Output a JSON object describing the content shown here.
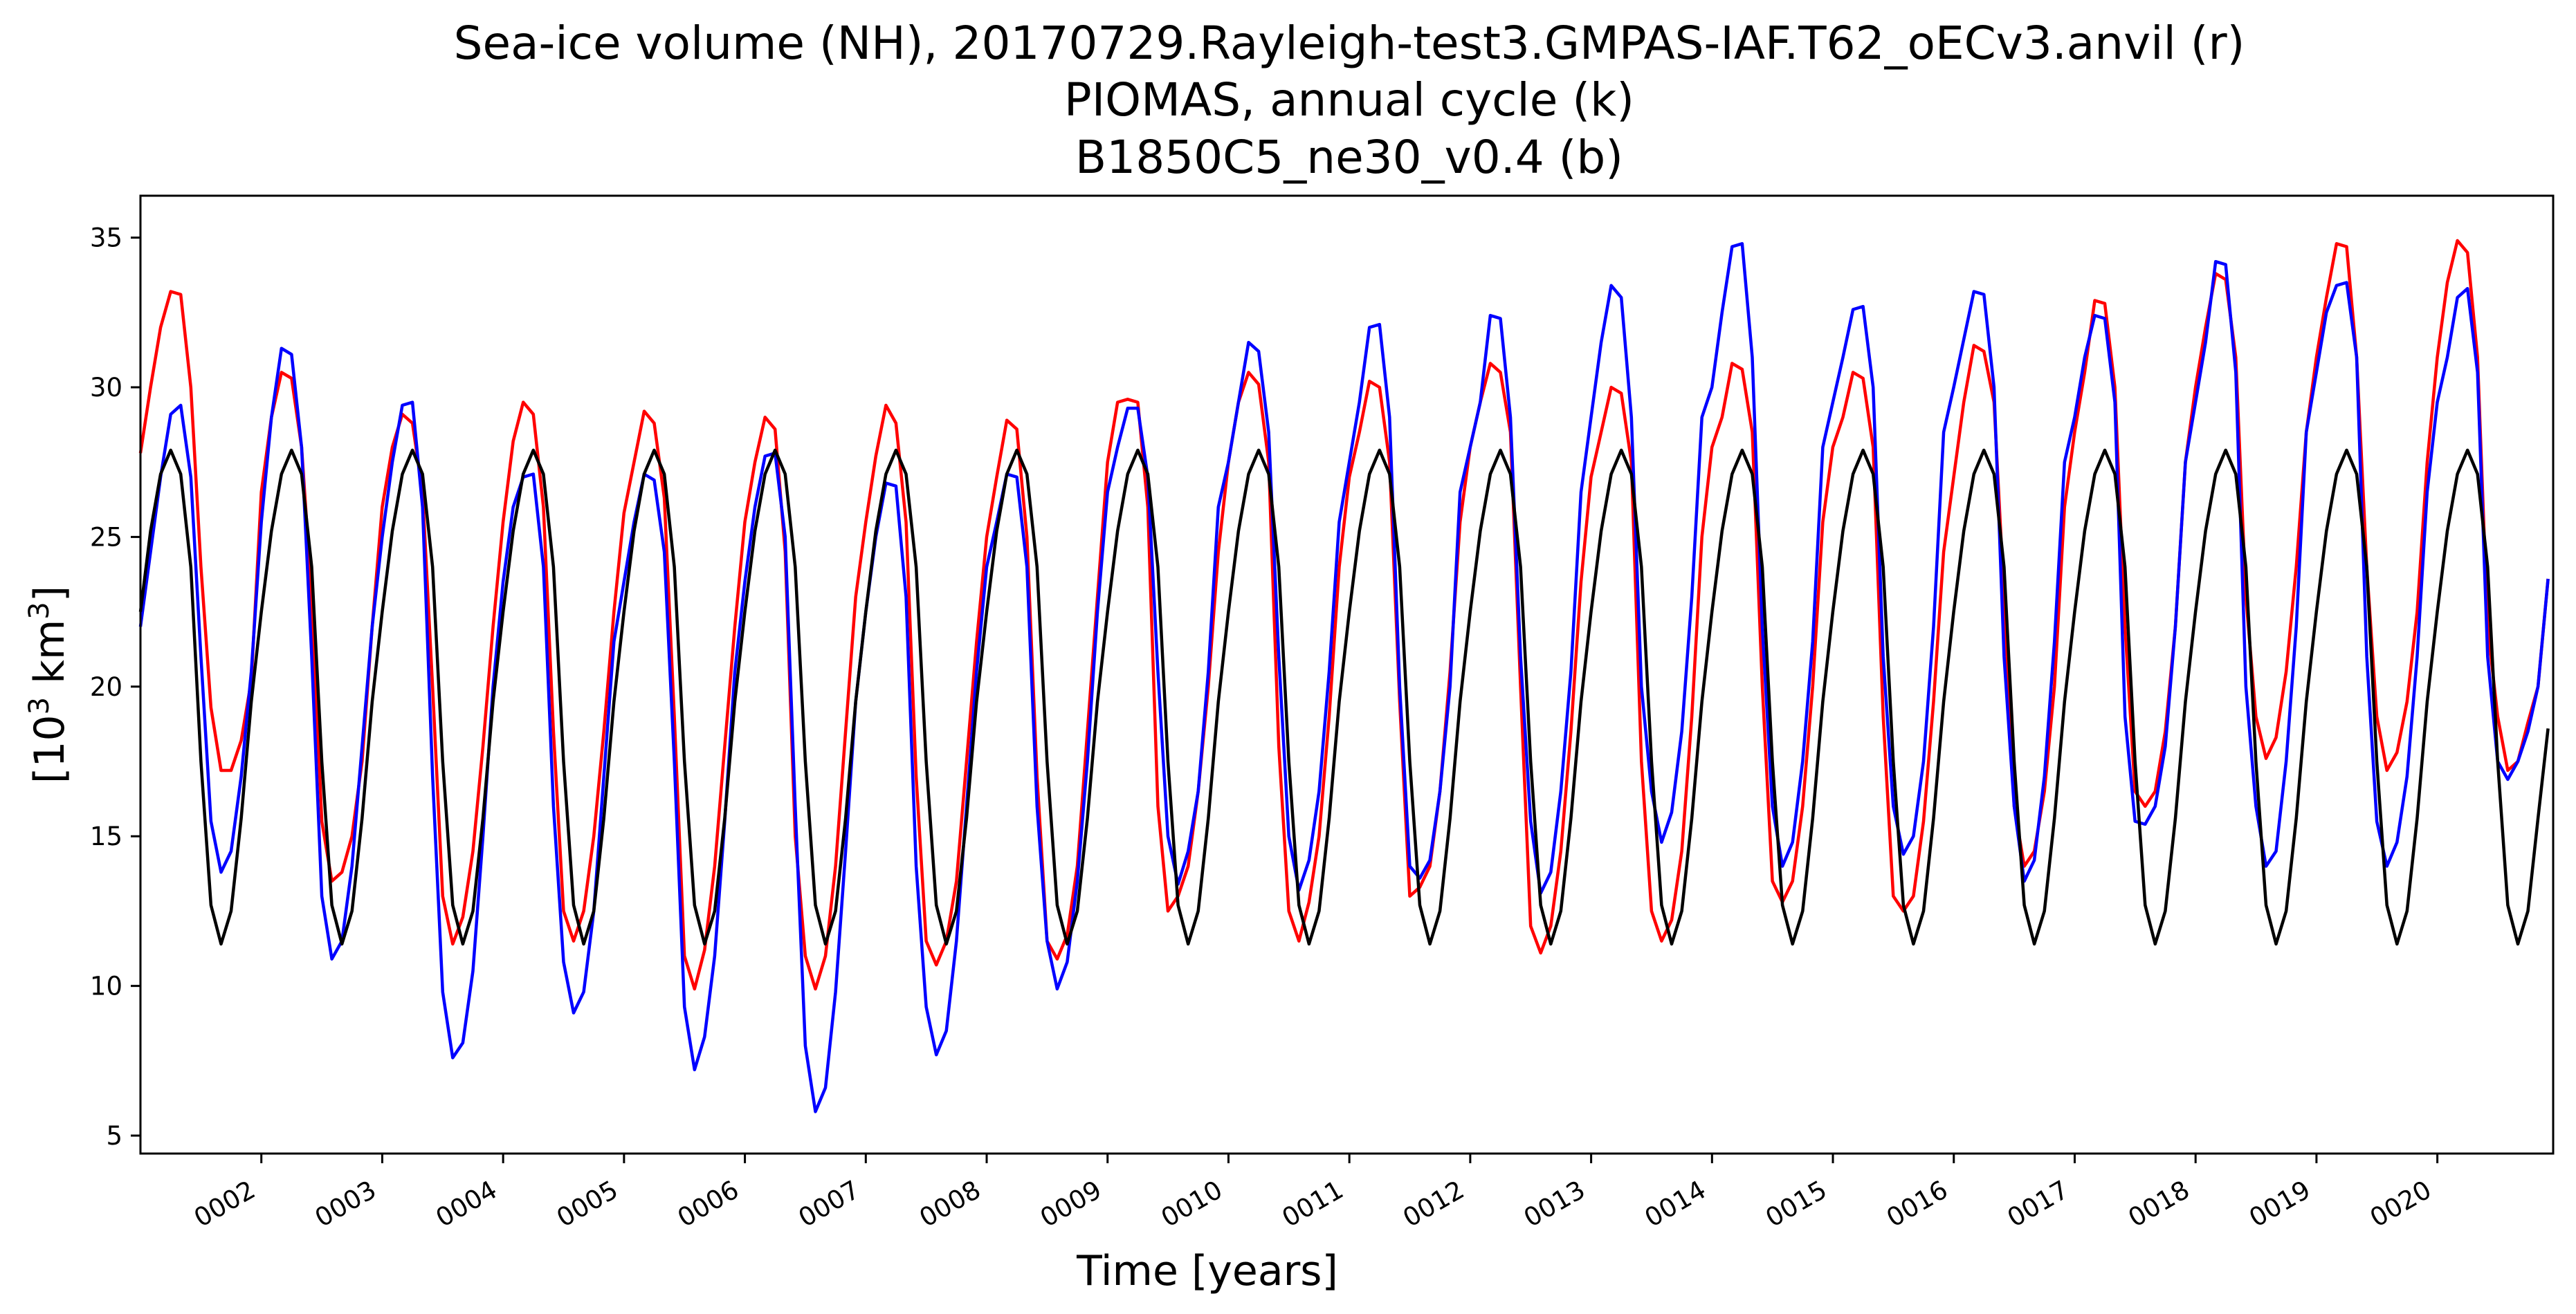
{
  "chart_data": {
    "type": "line",
    "title": [
      "Sea-ice volume (NH), 20170729.Rayleigh-test3.GMPAS-IAF.T62_oECv3.anvil (r)",
      "PIOMAS, annual cycle (k)",
      "B1850C5_ne30_v0.4 (b)"
    ],
    "xlabel": "Time [years]",
    "ylabel": "[10³ km³]",
    "ylabel_parts": {
      "prefix": "[10",
      "exp1": "3",
      "mid": " km",
      "exp2": "3",
      "suffix": "]"
    },
    "xlim": [
      1.0,
      20.958
    ],
    "ylim": [
      4.4,
      36.4
    ],
    "x_ticks": [
      {
        "value": 2,
        "label": "0002"
      },
      {
        "value": 3,
        "label": "0003"
      },
      {
        "value": 4,
        "label": "0004"
      },
      {
        "value": 5,
        "label": "0005"
      },
      {
        "value": 6,
        "label": "0006"
      },
      {
        "value": 7,
        "label": "0007"
      },
      {
        "value": 8,
        "label": "0008"
      },
      {
        "value": 9,
        "label": "0009"
      },
      {
        "value": 10,
        "label": "0010"
      },
      {
        "value": 11,
        "label": "0011"
      },
      {
        "value": 12,
        "label": "0012"
      },
      {
        "value": 13,
        "label": "0013"
      },
      {
        "value": 14,
        "label": "0014"
      },
      {
        "value": 15,
        "label": "0015"
      },
      {
        "value": 16,
        "label": "0016"
      },
      {
        "value": 17,
        "label": "0017"
      },
      {
        "value": 18,
        "label": "0018"
      },
      {
        "value": 19,
        "label": "0019"
      },
      {
        "value": 20,
        "label": "0020"
      }
    ],
    "y_ticks": [
      {
        "value": 5,
        "label": "5"
      },
      {
        "value": 10,
        "label": "10"
      },
      {
        "value": 15,
        "label": "15"
      },
      {
        "value": 20,
        "label": "20"
      },
      {
        "value": 25,
        "label": "25"
      },
      {
        "value": 30,
        "label": "30"
      },
      {
        "value": 35,
        "label": "35"
      }
    ],
    "grid": false,
    "legend": "none",
    "x_start": 1.0,
    "x_step": 0.08333,
    "series": [
      {
        "color": "#ff0000",
        "values": [
          27.8,
          30.0,
          32.0,
          33.2,
          33.1,
          30.0,
          24.0,
          19.3,
          17.2,
          17.2,
          18.2,
          20.2,
          26.5,
          29.0,
          30.5,
          30.3,
          28.0,
          23.0,
          15.5,
          13.5,
          13.8,
          15.0,
          17.5,
          22.0,
          26.0,
          28.0,
          29.1,
          28.8,
          26.5,
          20.0,
          13.0,
          11.4,
          12.3,
          14.5,
          18.0,
          22.0,
          25.5,
          28.2,
          29.5,
          29.1,
          26.0,
          18.5,
          12.5,
          11.5,
          12.5,
          15.0,
          18.5,
          22.5,
          25.8,
          27.5,
          29.2,
          28.8,
          26.3,
          19.0,
          11.0,
          9.9,
          11.2,
          14.0,
          18.0,
          22.0,
          25.5,
          27.5,
          29.0,
          28.6,
          24.5,
          15.0,
          11.0,
          9.9,
          11.0,
          14.0,
          18.5,
          23.0,
          25.5,
          27.7,
          29.4,
          28.8,
          25.5,
          17.0,
          11.5,
          10.7,
          11.5,
          13.5,
          17.5,
          21.5,
          25.0,
          27.0,
          28.9,
          28.6,
          25.0,
          17.0,
          11.5,
          10.9,
          11.7,
          14.0,
          18.5,
          23.0,
          27.5,
          29.5,
          29.6,
          29.5,
          26.0,
          16.0,
          12.5,
          13.0,
          14.0,
          16.5,
          20.0,
          24.5,
          27.5,
          29.5,
          30.5,
          30.1,
          27.5,
          18.0,
          12.5,
          11.5,
          12.8,
          15.0,
          19.0,
          24.0,
          27.0,
          28.5,
          30.2,
          30.0,
          27.5,
          19.5,
          13.0,
          13.3,
          14.0,
          16.5,
          20.5,
          25.5,
          28.0,
          29.5,
          30.8,
          30.5,
          28.5,
          20.0,
          12.0,
          11.1,
          12.0,
          14.5,
          18.5,
          23.5,
          27.0,
          28.5,
          30.0,
          29.8,
          27.5,
          17.5,
          12.5,
          11.5,
          12.2,
          14.5,
          19.0,
          25.0,
          28.0,
          29.0,
          30.8,
          30.6,
          28.5,
          20.0,
          13.5,
          12.8,
          13.5,
          16.0,
          20.0,
          25.5,
          28.0,
          29.0,
          30.5,
          30.3,
          28.0,
          19.0,
          13.0,
          12.5,
          13.0,
          15.5,
          19.5,
          24.5,
          27.0,
          29.5,
          31.4,
          31.2,
          29.5,
          23.0,
          16.0,
          14.0,
          14.5,
          16.5,
          20.0,
          26.0,
          28.5,
          30.5,
          32.9,
          32.8,
          30.0,
          22.0,
          16.5,
          16.0,
          16.5,
          18.5,
          22.0,
          27.5,
          30.0,
          32.0,
          33.8,
          33.6,
          31.0,
          23.0,
          19.0,
          17.6,
          18.3,
          20.5,
          24.0,
          28.5,
          31.0,
          33.0,
          34.8,
          34.7,
          31.0,
          24.0,
          19.0,
          17.2,
          17.8,
          19.5,
          22.5,
          27.5,
          31.0,
          33.5,
          34.9,
          34.5,
          31.0,
          22.0,
          19.0,
          17.2,
          17.5,
          18.8,
          20.0,
          23.6
        ]
      },
      {
        "color": "#0000ff",
        "values": [
          22.0,
          24.5,
          27.0,
          29.1,
          29.4,
          27.0,
          21.0,
          15.5,
          13.8,
          14.5,
          17.0,
          20.5,
          25.5,
          29.0,
          31.3,
          31.1,
          28.0,
          21.0,
          13.0,
          10.9,
          11.5,
          14.0,
          18.0,
          22.0,
          25.0,
          27.5,
          29.4,
          29.5,
          26.0,
          17.0,
          9.8,
          7.6,
          8.1,
          10.5,
          15.0,
          20.0,
          23.5,
          26.0,
          27.0,
          27.1,
          24.0,
          16.0,
          10.8,
          9.1,
          9.8,
          12.5,
          17.0,
          21.5,
          23.5,
          25.5,
          27.1,
          26.9,
          24.5,
          17.5,
          9.3,
          7.2,
          8.3,
          11.0,
          15.5,
          20.5,
          23.5,
          26.0,
          27.7,
          27.8,
          25.0,
          16.0,
          8.0,
          5.8,
          6.6,
          9.8,
          14.5,
          19.5,
          22.5,
          25.0,
          26.8,
          26.7,
          23.0,
          14.0,
          9.3,
          7.7,
          8.5,
          11.5,
          16.0,
          20.5,
          24.0,
          25.5,
          27.1,
          27.0,
          24.0,
          16.0,
          11.5,
          9.9,
          10.8,
          13.5,
          17.5,
          22.5,
          26.5,
          28.0,
          29.3,
          29.3,
          27.0,
          20.5,
          15.0,
          13.4,
          14.5,
          16.5,
          20.5,
          26.0,
          27.5,
          29.5,
          31.5,
          31.2,
          28.5,
          21.0,
          15.0,
          13.2,
          14.2,
          16.5,
          20.5,
          25.5,
          27.5,
          29.5,
          32.0,
          32.1,
          29.0,
          20.0,
          14.0,
          13.6,
          14.2,
          16.5,
          20.0,
          26.5,
          28.0,
          29.5,
          32.4,
          32.3,
          29.0,
          21.0,
          15.5,
          13.1,
          13.8,
          16.5,
          20.5,
          26.5,
          29.0,
          31.5,
          33.4,
          33.0,
          29.0,
          20.0,
          16.5,
          14.8,
          15.8,
          18.5,
          23.0,
          29.0,
          30.0,
          32.5,
          34.7,
          34.8,
          31.0,
          22.0,
          16.0,
          14.0,
          14.8,
          17.5,
          21.5,
          28.0,
          29.5,
          31.0,
          32.6,
          32.7,
          30.0,
          21.0,
          16.0,
          14.4,
          15.0,
          17.5,
          22.0,
          28.5,
          30.0,
          31.6,
          33.2,
          33.1,
          30.0,
          21.0,
          16.0,
          13.5,
          14.2,
          17.0,
          21.5,
          27.5,
          29.0,
          31.0,
          32.4,
          32.3,
          29.5,
          19.0,
          15.5,
          15.4,
          16.0,
          18.0,
          22.0,
          27.5,
          29.5,
          31.5,
          34.2,
          34.1,
          30.5,
          20.0,
          16.0,
          14.0,
          14.5,
          17.5,
          22.0,
          28.5,
          30.5,
          32.5,
          33.4,
          33.5,
          31.0,
          21.0,
          15.5,
          14.0,
          14.8,
          17.0,
          21.0,
          26.5,
          29.5,
          31.0,
          33.0,
          33.3,
          30.5,
          21.0,
          17.5,
          16.9,
          17.5,
          18.5,
          20.0,
          23.6
        ]
      },
      {
        "color": "#000000",
        "values": [
          22.5,
          25.2,
          27.1,
          27.9,
          27.1,
          24.0,
          17.5,
          12.7,
          11.4,
          12.5,
          15.6,
          19.5,
          22.5,
          25.2,
          27.1,
          27.9,
          27.1,
          24.0,
          17.5,
          12.7,
          11.4,
          12.5,
          15.6,
          19.5,
          22.5,
          25.2,
          27.1,
          27.9,
          27.1,
          24.0,
          17.5,
          12.7,
          11.4,
          12.5,
          15.6,
          19.5,
          22.5,
          25.2,
          27.1,
          27.9,
          27.1,
          24.0,
          17.5,
          12.7,
          11.4,
          12.5,
          15.6,
          19.5,
          22.5,
          25.2,
          27.1,
          27.9,
          27.1,
          24.0,
          17.5,
          12.7,
          11.4,
          12.5,
          15.6,
          19.5,
          22.5,
          25.2,
          27.1,
          27.9,
          27.1,
          24.0,
          17.5,
          12.7,
          11.4,
          12.5,
          15.6,
          19.5,
          22.5,
          25.2,
          27.1,
          27.9,
          27.1,
          24.0,
          17.5,
          12.7,
          11.4,
          12.5,
          15.6,
          19.5,
          22.5,
          25.2,
          27.1,
          27.9,
          27.1,
          24.0,
          17.5,
          12.7,
          11.4,
          12.5,
          15.6,
          19.5,
          22.5,
          25.2,
          27.1,
          27.9,
          27.1,
          24.0,
          17.5,
          12.7,
          11.4,
          12.5,
          15.6,
          19.5,
          22.5,
          25.2,
          27.1,
          27.9,
          27.1,
          24.0,
          17.5,
          12.7,
          11.4,
          12.5,
          15.6,
          19.5,
          22.5,
          25.2,
          27.1,
          27.9,
          27.1,
          24.0,
          17.5,
          12.7,
          11.4,
          12.5,
          15.6,
          19.5,
          22.5,
          25.2,
          27.1,
          27.9,
          27.1,
          24.0,
          17.5,
          12.7,
          11.4,
          12.5,
          15.6,
          19.5,
          22.5,
          25.2,
          27.1,
          27.9,
          27.1,
          24.0,
          17.5,
          12.7,
          11.4,
          12.5,
          15.6,
          19.5,
          22.5,
          25.2,
          27.1,
          27.9,
          27.1,
          24.0,
          17.5,
          12.7,
          11.4,
          12.5,
          15.6,
          19.5,
          22.5,
          25.2,
          27.1,
          27.9,
          27.1,
          24.0,
          17.5,
          12.7,
          11.4,
          12.5,
          15.6,
          19.5,
          22.5,
          25.2,
          27.1,
          27.9,
          27.1,
          24.0,
          17.5,
          12.7,
          11.4,
          12.5,
          15.6,
          19.5,
          22.5,
          25.2,
          27.1,
          27.9,
          27.1,
          24.0,
          17.5,
          12.7,
          11.4,
          12.5,
          15.6,
          19.5,
          22.5,
          25.2,
          27.1,
          27.9,
          27.1,
          24.0,
          17.5,
          12.7,
          11.4,
          12.5,
          15.6,
          19.5,
          22.5,
          25.2,
          27.1,
          27.9,
          27.1,
          24.0,
          17.5,
          12.7,
          11.4,
          12.5,
          15.6,
          19.5,
          22.5,
          25.2,
          27.1,
          27.9,
          27.1,
          24.0,
          17.5,
          12.7,
          11.4,
          12.5,
          15.6,
          18.6
        ]
      }
    ]
  }
}
